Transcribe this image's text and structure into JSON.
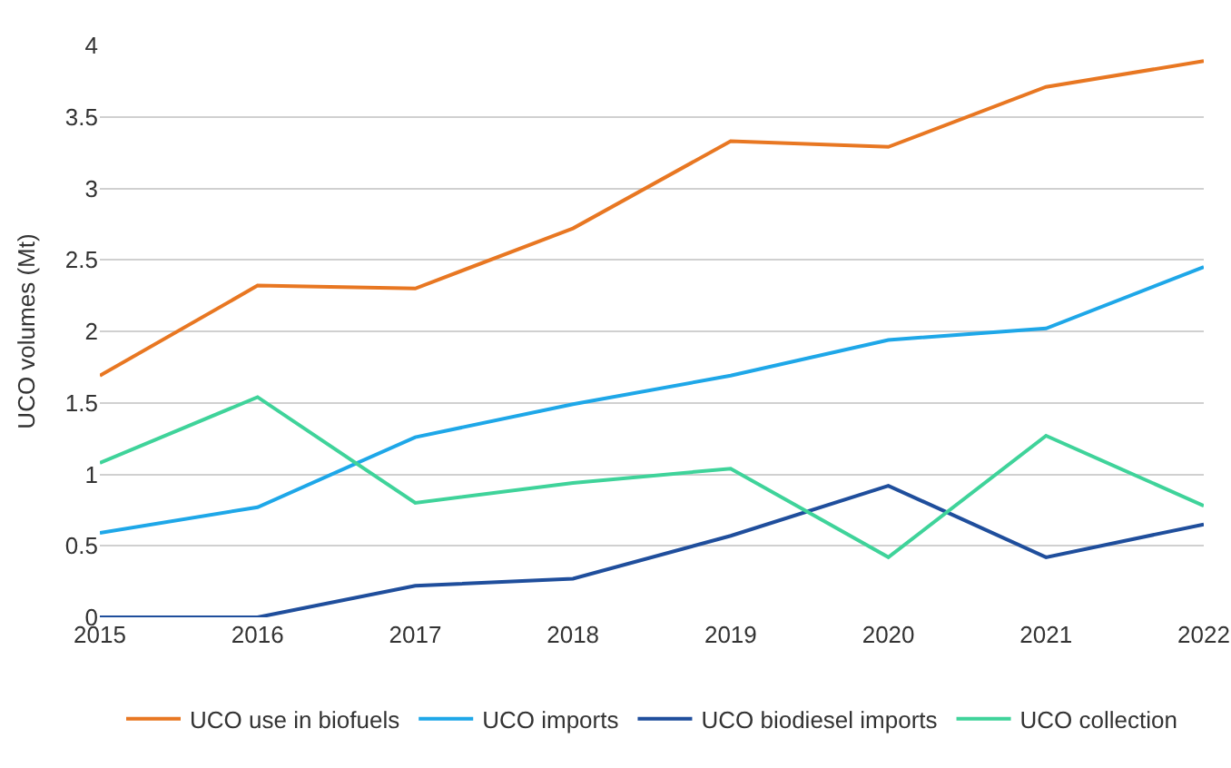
{
  "chart_data": {
    "type": "line",
    "ylabel": "UCO volumes (Mt)",
    "categories": [
      "2015",
      "2016",
      "2017",
      "2018",
      "2019",
      "2020",
      "2021",
      "2022"
    ],
    "series": [
      {
        "name": "UCO use in biofuels",
        "color": "#e87722",
        "values": [
          1.69,
          2.32,
          2.3,
          2.72,
          3.33,
          3.29,
          3.71,
          3.89
        ]
      },
      {
        "name": "UCO imports",
        "color": "#1ea7e8",
        "values": [
          0.59,
          0.77,
          1.26,
          1.49,
          1.69,
          1.94,
          2.02,
          2.45
        ]
      },
      {
        "name": "UCO biodiesel imports",
        "color": "#1f4e9c",
        "values": [
          0,
          0,
          0.22,
          0.27,
          0.57,
          0.92,
          0.42,
          0.65
        ]
      },
      {
        "name": "UCO collection",
        "color": "#3fd39a",
        "values": [
          1.08,
          1.54,
          0.8,
          0.94,
          1.04,
          0.42,
          1.27,
          0.78
        ]
      }
    ],
    "ylim": [
      0,
      4
    ],
    "yticks": [
      0,
      0.5,
      1,
      1.5,
      2,
      2.5,
      3,
      3.5,
      4
    ],
    "grid": "y",
    "legend": "bottom",
    "marker": "none",
    "line_style": "solid"
  }
}
